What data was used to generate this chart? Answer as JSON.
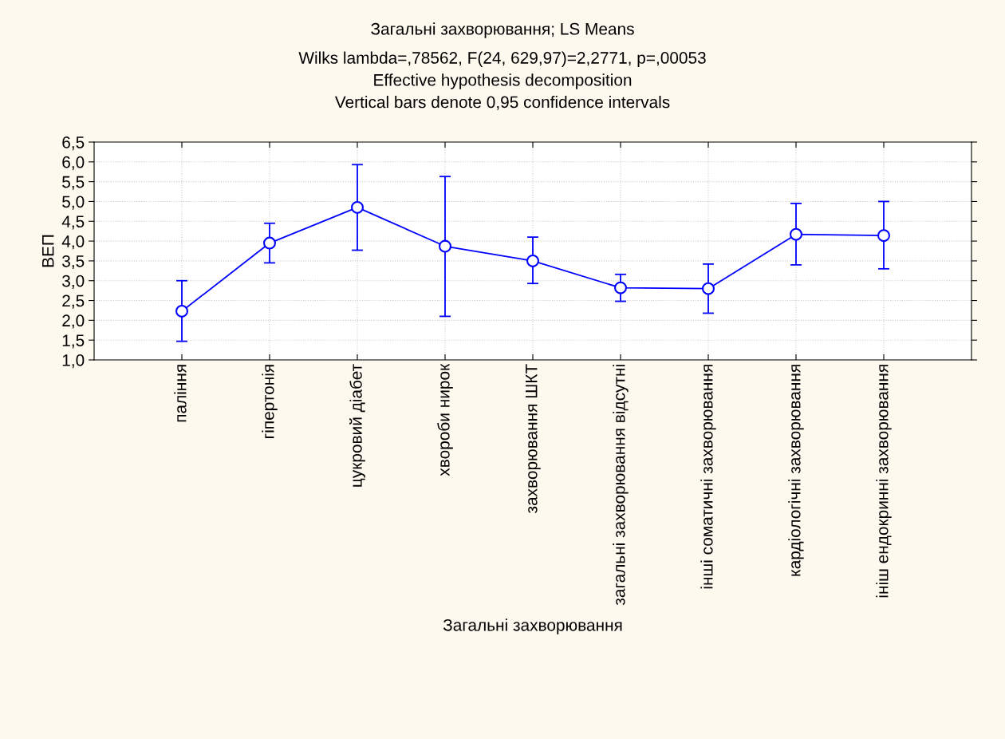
{
  "chart_data": {
    "type": "line",
    "title": "Загальні захворювання; LS Means",
    "subtitle": "Wilks lambda=,78562, F(24, 629,97)=2,2771, p=,00053\nEffective hypothesis decomposition\nVertical bars denote 0,95 confidence intervals",
    "xlabel": "Загальні захворювання",
    "ylabel": "ВЕП",
    "categories": [
      "паління",
      "гіпертонія",
      "цукровий діабет",
      "хвороби нирок",
      "захворювання ШКТ",
      "загальні захворювання відсутні",
      "інші соматичні захворювання",
      "кардіологічні захворювання",
      "ініш ендокринні захворювання"
    ],
    "series": [
      {
        "color": "#0000ff",
        "values": [
          2.23,
          3.95,
          4.85,
          3.87,
          3.5,
          2.82,
          2.8,
          4.17,
          4.14
        ],
        "errors": [
          [
            1.47,
            3.0
          ],
          [
            3.45,
            4.45
          ],
          [
            3.77,
            5.93
          ],
          [
            2.1,
            5.63
          ],
          [
            2.93,
            4.1
          ],
          [
            2.48,
            3.16
          ],
          [
            2.18,
            3.42
          ],
          [
            3.4,
            4.95
          ],
          [
            3.3,
            5.0
          ]
        ]
      }
    ],
    "ylim": [
      1.0,
      6.5
    ],
    "yticks": [
      {
        "value": 1.0,
        "label": "1,0"
      },
      {
        "value": 1.5,
        "label": "1,5"
      },
      {
        "value": 2.0,
        "label": "2,0"
      },
      {
        "value": 2.5,
        "label": "2,5"
      },
      {
        "value": 3.0,
        "label": "3,0"
      },
      {
        "value": 3.5,
        "label": "3,5"
      },
      {
        "value": 4.0,
        "label": "4,0"
      },
      {
        "value": 4.5,
        "label": "4,5"
      },
      {
        "value": 5.0,
        "label": "5,0"
      },
      {
        "value": 5.5,
        "label": "5,5"
      },
      {
        "value": 6.0,
        "label": "6,0"
      },
      {
        "value": 6.5,
        "label": "6,5"
      }
    ],
    "grid": true,
    "marker": "circle",
    "line_style": "solid",
    "legend": false
  }
}
